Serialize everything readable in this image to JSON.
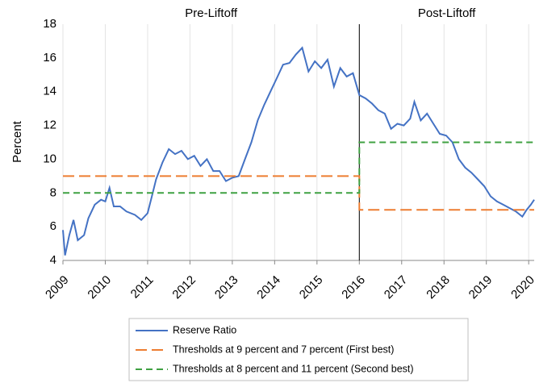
{
  "chart_data": {
    "type": "line",
    "y_label": "Percent",
    "annotations": [
      "Pre-Liftoff",
      "Post-Liftoff"
    ],
    "divider_x": 2016,
    "xlim": [
      2009,
      2020.13
    ],
    "ylim": [
      4,
      18
    ],
    "xticks": [
      2009,
      2010,
      2011,
      2012,
      2013,
      2014,
      2015,
      2016,
      2017,
      2018,
      2019,
      2020
    ],
    "yticks": [
      4,
      6,
      8,
      10,
      12,
      14,
      16,
      18
    ],
    "grid": "x",
    "series": [
      {
        "name": "Reserve Ratio",
        "color": "#4472c4",
        "style": "solid",
        "x": [
          2009.0,
          2009.05,
          2009.15,
          2009.25,
          2009.35,
          2009.5,
          2009.6,
          2009.75,
          2009.9,
          2010.0,
          2010.1,
          2010.2,
          2010.35,
          2010.5,
          2010.7,
          2010.85,
          2011.0,
          2011.1,
          2011.2,
          2011.35,
          2011.5,
          2011.65,
          2011.8,
          2011.95,
          2012.1,
          2012.25,
          2012.4,
          2012.55,
          2012.7,
          2012.85,
          2013.0,
          2013.15,
          2013.3,
          2013.45,
          2013.6,
          2013.75,
          2013.9,
          2014.05,
          2014.2,
          2014.35,
          2014.5,
          2014.65,
          2014.8,
          2014.95,
          2015.1,
          2015.25,
          2015.4,
          2015.55,
          2015.7,
          2015.85,
          2016.0,
          2016.15,
          2016.3,
          2016.45,
          2016.6,
          2016.75,
          2016.9,
          2017.05,
          2017.2,
          2017.3,
          2017.45,
          2017.6,
          2017.75,
          2017.9,
          2018.05,
          2018.2,
          2018.35,
          2018.5,
          2018.65,
          2018.8,
          2018.95,
          2019.1,
          2019.25,
          2019.4,
          2019.55,
          2019.7,
          2019.85,
          2019.95,
          2020.05,
          2020.13
        ],
        "values": [
          5.8,
          4.3,
          5.5,
          6.4,
          5.2,
          5.5,
          6.5,
          7.3,
          7.6,
          7.5,
          8.3,
          7.2,
          7.2,
          6.9,
          6.7,
          6.4,
          6.8,
          7.8,
          8.8,
          9.8,
          10.6,
          10.3,
          10.5,
          10.0,
          10.2,
          9.6,
          10.0,
          9.3,
          9.3,
          8.7,
          8.9,
          9.0,
          10.0,
          11.0,
          12.3,
          13.2,
          14.0,
          14.8,
          15.6,
          15.7,
          16.2,
          16.6,
          15.2,
          15.8,
          15.4,
          15.9,
          14.3,
          15.4,
          14.9,
          15.1,
          13.8,
          13.6,
          13.3,
          12.9,
          12.7,
          11.8,
          12.1,
          12.0,
          12.4,
          13.4,
          12.3,
          12.7,
          12.1,
          11.5,
          11.4,
          11.0,
          10.0,
          9.5,
          9.2,
          8.8,
          8.4,
          7.8,
          7.5,
          7.3,
          7.1,
          6.9,
          6.6,
          7.0,
          7.3,
          7.6
        ]
      },
      {
        "name": "Thresholds at 9 percent and 7 percent (First best)",
        "color": "#ed7d31",
        "style": "long-dash",
        "x": [
          2009,
          2016,
          2016,
          2020.13
        ],
        "values": [
          9,
          9,
          7,
          7
        ]
      },
      {
        "name": "Thresholds at 8 percent and 11 percent (Second best)",
        "color": "#3fa142",
        "style": "short-dash",
        "x": [
          2009,
          2016,
          2016,
          2020.13
        ],
        "values": [
          8,
          8,
          11,
          11
        ]
      }
    ]
  }
}
